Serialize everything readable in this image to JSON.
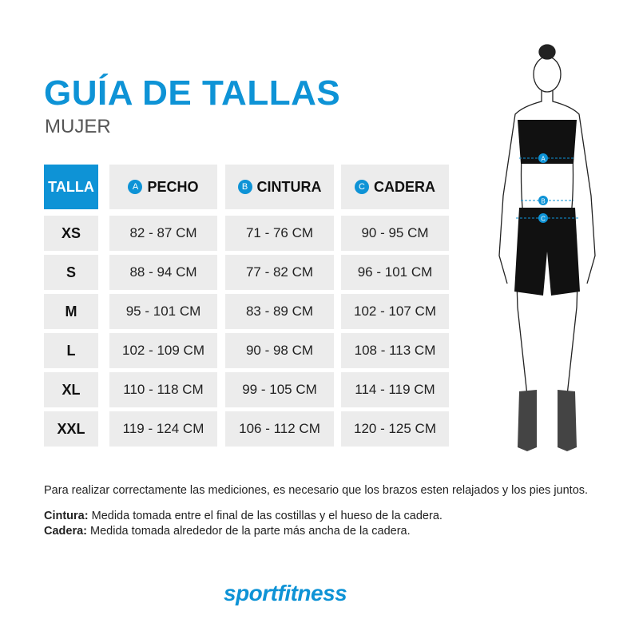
{
  "header": {
    "title": "GUÍA DE TALLAS",
    "subtitle": "MUJER"
  },
  "table": {
    "columns": [
      {
        "label": "TALLA"
      },
      {
        "badge": "A",
        "label": "PECHO"
      },
      {
        "badge": "B",
        "label": "CINTURA"
      },
      {
        "badge": "C",
        "label": "CADERA"
      }
    ],
    "rows": [
      [
        "XS",
        "82 - 87 CM",
        "71 - 76 CM",
        "90 - 95 CM"
      ],
      [
        "S",
        "88 - 94 CM",
        "77 - 82 CM",
        "96 - 101 CM"
      ],
      [
        "M",
        "95 - 101 CM",
        "83 - 89 CM",
        "102 - 107 CM"
      ],
      [
        "L",
        "102 - 109 CM",
        "90 - 98 CM",
        "108 - 113 CM"
      ],
      [
        "XL",
        "110 - 118 CM",
        "99 - 105 CM",
        "114 - 119 CM"
      ],
      [
        "XXL",
        "119 - 124 CM",
        "106 - 112 CM",
        "120 - 125 CM"
      ]
    ]
  },
  "figure": {
    "markers": [
      "A",
      "B",
      "C"
    ]
  },
  "notes": {
    "intro": "Para realizar correctamente las mediciones, es necesario que los brazos esten relajados y los pies juntos.",
    "cintura_label": "Cintura:",
    "cintura_text": " Medida tomada entre el final de las costillas y el hueso de la cadera.",
    "cadera_label": "Cadera:",
    "cadera_text": " Medida tomada alrededor de la parte más ancha de la cadera."
  },
  "brand": {
    "logo": "sportfitness"
  },
  "colors": {
    "accent": "#0e93d6",
    "cell": "#ececec"
  }
}
